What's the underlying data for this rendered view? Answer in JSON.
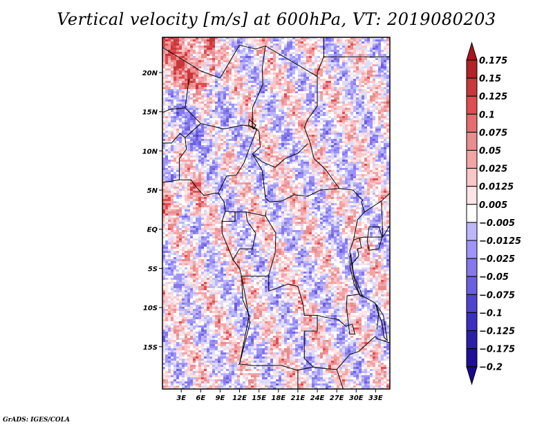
{
  "title": "Vertical velocity [m/s] at 600hPa, VT: 2019080203",
  "credit": "GrADS: IGES/COLA",
  "map": {
    "projection": "latlon",
    "lon_range": [
      0.1,
      35.2
    ],
    "lat_range": [
      -20.4,
      24.5
    ],
    "lat_ticks": [
      {
        "value": 20,
        "label": "20N"
      },
      {
        "value": 15,
        "label": "15N"
      },
      {
        "value": 10,
        "label": "10N"
      },
      {
        "value": 5,
        "label": "5N"
      },
      {
        "value": 0,
        "label": "EQ"
      },
      {
        "value": -5,
        "label": "5S"
      },
      {
        "value": -10,
        "label": "10S"
      },
      {
        "value": -15,
        "label": "15S"
      }
    ],
    "lon_ticks": [
      {
        "value": 3,
        "label": "3E"
      },
      {
        "value": 6,
        "label": "6E"
      },
      {
        "value": 9,
        "label": "9E"
      },
      {
        "value": 12,
        "label": "12E"
      },
      {
        "value": 15,
        "label": "15E"
      },
      {
        "value": 18,
        "label": "18E"
      },
      {
        "value": 21,
        "label": "21E"
      },
      {
        "value": 24,
        "label": "24E"
      },
      {
        "value": 27,
        "label": "27E"
      },
      {
        "value": 30,
        "label": "30E"
      },
      {
        "value": 33,
        "label": "33E"
      }
    ],
    "field": "vertical velocity",
    "units": "m/s",
    "level": "600hPa",
    "valid_time": "2019080203"
  },
  "colorbar": {
    "labels": [
      "0.175",
      "0.15",
      "0.125",
      "0.1",
      "0.075",
      "0.05",
      "0.025",
      "0.0125",
      "0.005",
      "-0.005",
      "-0.0125",
      "-0.025",
      "-0.05",
      "-0.075",
      "-0.1",
      "-0.125",
      "-0.175",
      "-0.2"
    ],
    "colors": [
      "#b42127",
      "#c8373a",
      "#e04d50",
      "#e66c6f",
      "#e88d90",
      "#f3a4a6",
      "#fbc6c8",
      "#fde4e6",
      "#ffffff",
      "#dcdcfa",
      "#bcb7fb",
      "#9e94fa",
      "#8577ec",
      "#6c5fde",
      "#4f44cf",
      "#3b30bf",
      "#2b1fa8",
      "#1f0f9a"
    ],
    "top_arrow_color": "#a8161c",
    "bottom_arrow_color": "#1a0690"
  }
}
